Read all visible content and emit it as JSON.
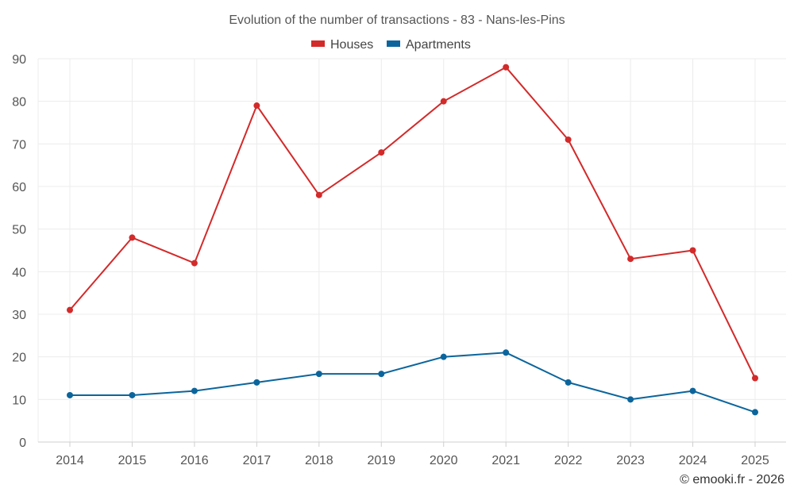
{
  "chart_data": {
    "type": "line",
    "title": "Evolution of the number of transactions - 83 - Nans-les-Pins",
    "categories": [
      "2014",
      "2015",
      "2016",
      "2017",
      "2018",
      "2019",
      "2020",
      "2021",
      "2022",
      "2023",
      "2024",
      "2025"
    ],
    "ylim": [
      0,
      90
    ],
    "yticks": [
      0,
      10,
      20,
      30,
      40,
      50,
      60,
      70,
      80,
      90
    ],
    "grid": true,
    "legend_position": "top-center",
    "series": [
      {
        "name": "Houses",
        "color": "#d32a2a",
        "values": [
          31,
          48,
          42,
          79,
          58,
          68,
          80,
          88,
          71,
          43,
          45,
          15
        ]
      },
      {
        "name": "Apartments",
        "color": "#0b659c",
        "values": [
          11,
          11,
          12,
          14,
          16,
          16,
          20,
          21,
          14,
          10,
          12,
          7
        ]
      }
    ],
    "credit": "© emooki.fr - 2026"
  }
}
